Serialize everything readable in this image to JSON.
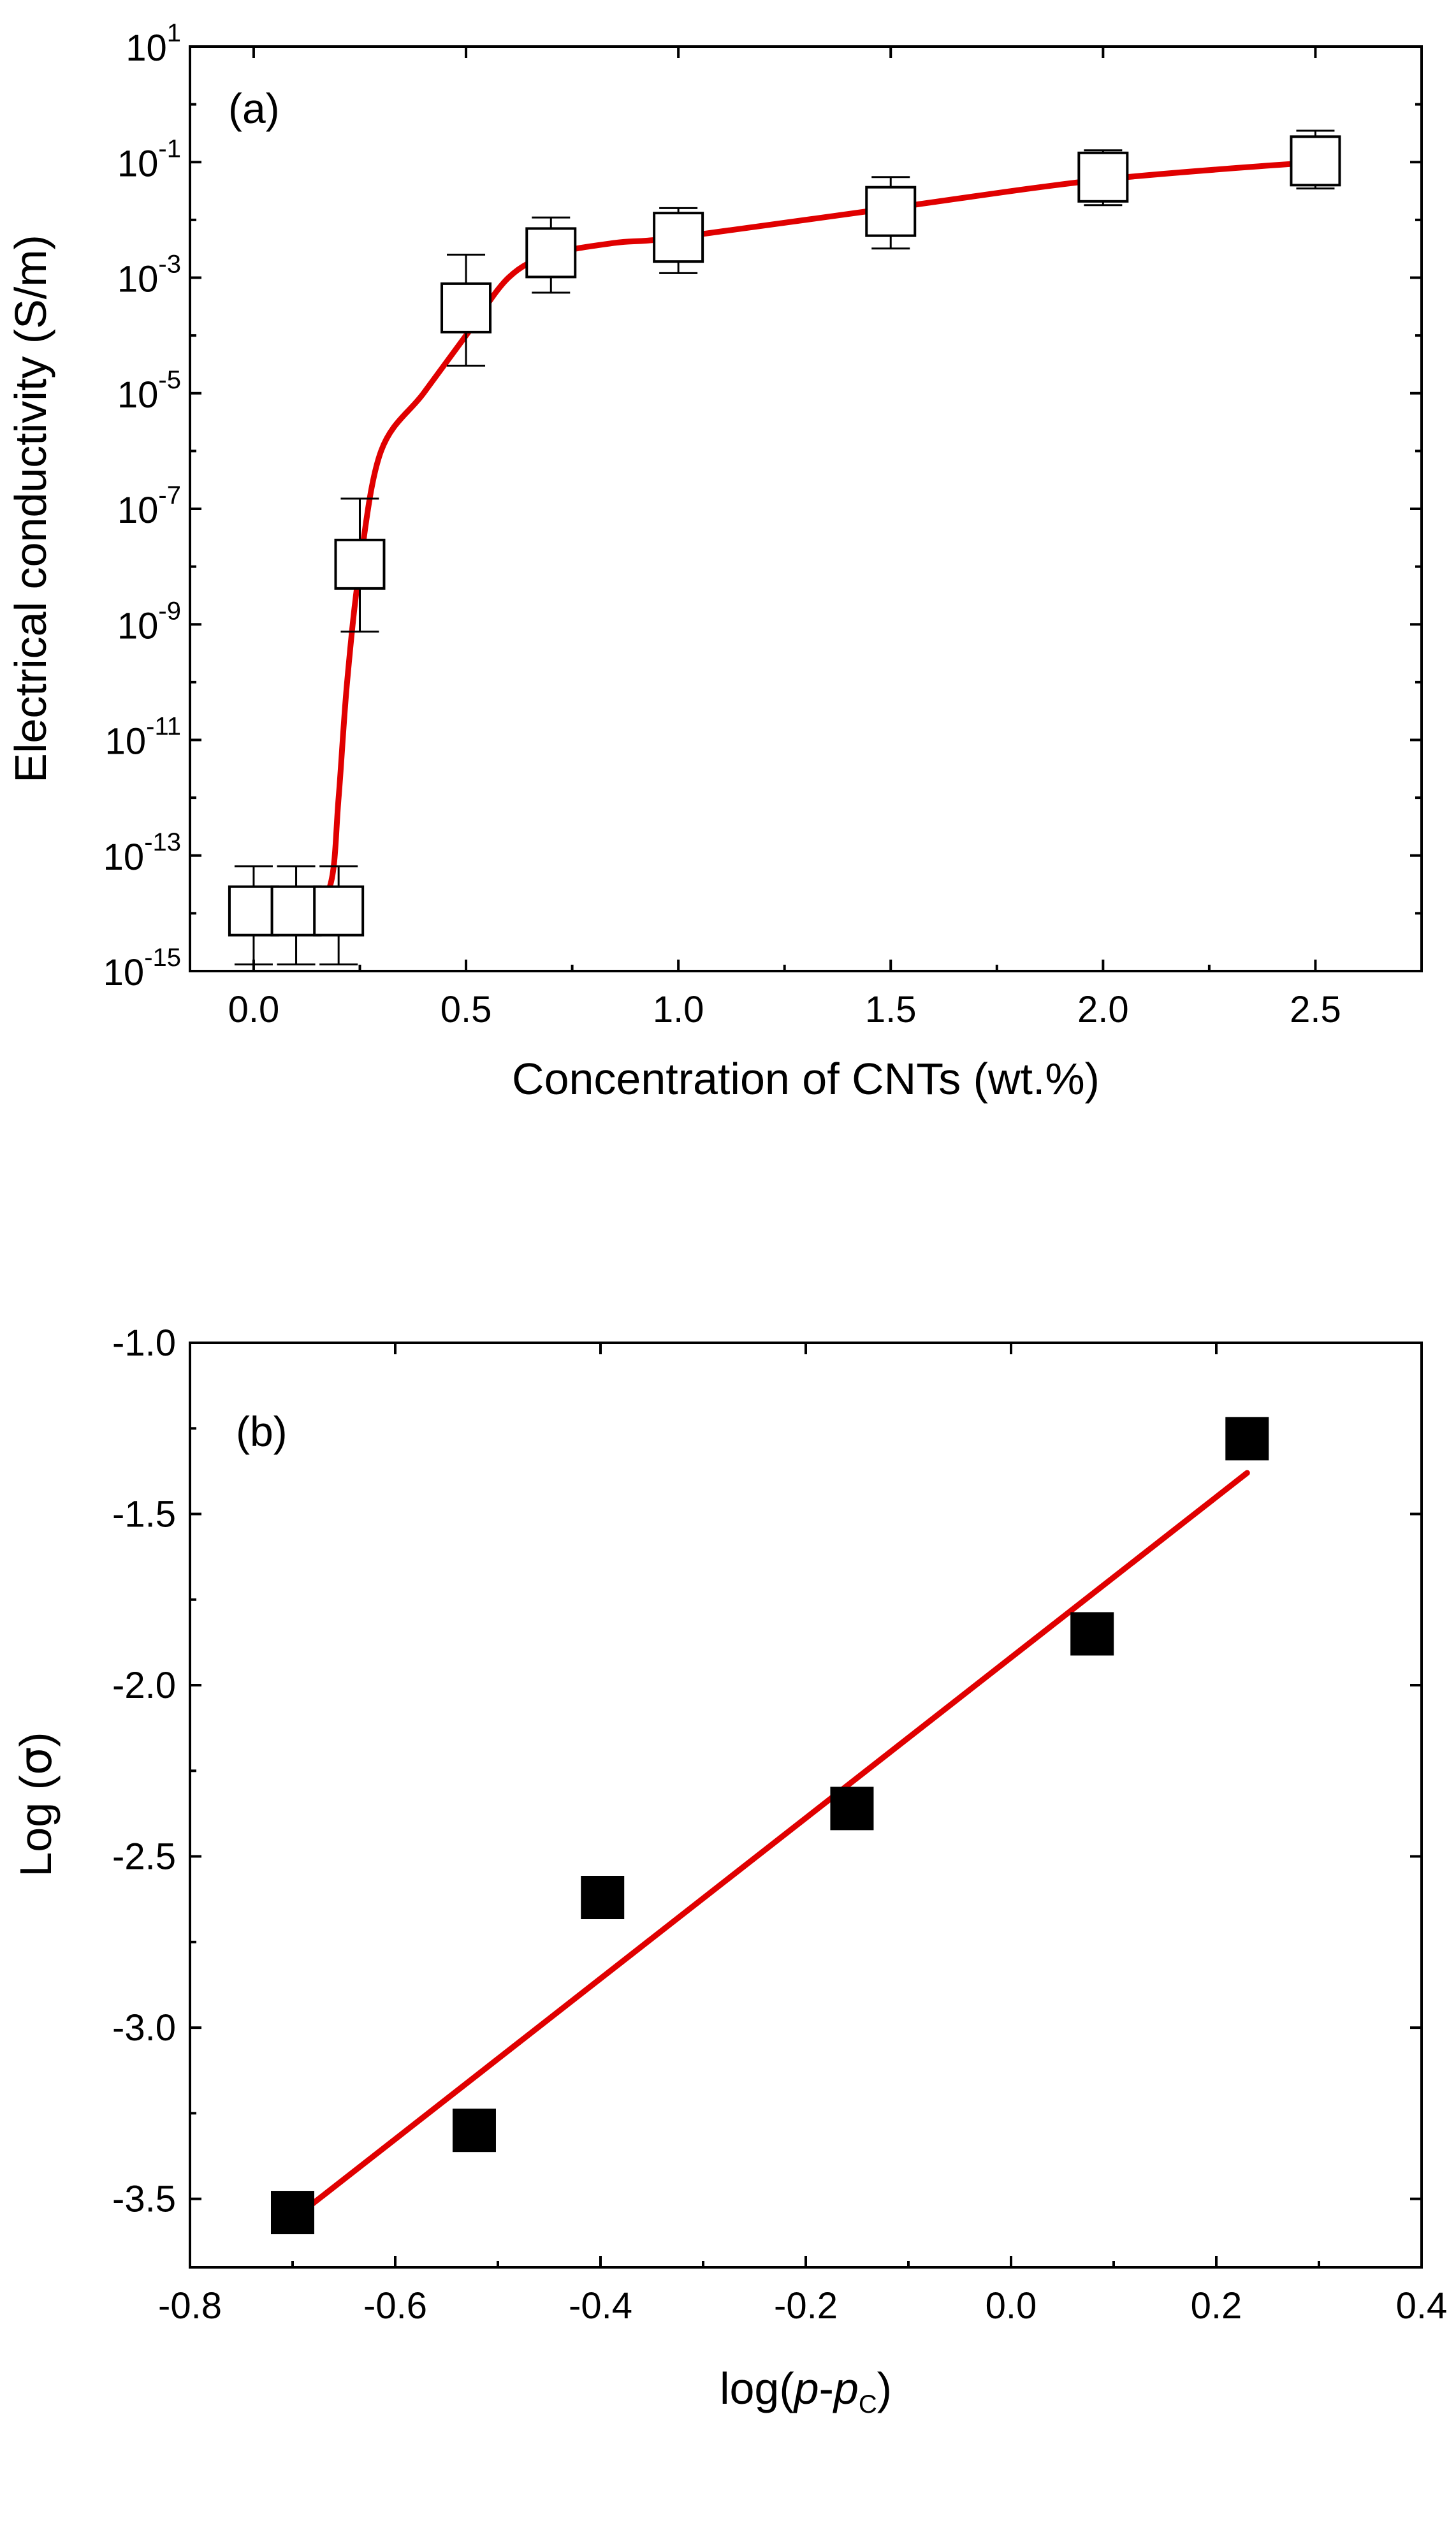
{
  "chart_data": [
    {
      "type": "scatter",
      "panel_label": "(a)",
      "title": "",
      "xlabel": "Concentration of CNTs (wt.%)",
      "ylabel": "Electrical conductivity (S/m)",
      "xlim": [
        -0.15,
        2.75
      ],
      "ylim_exponent": [
        -15,
        1
      ],
      "yscale": "log",
      "grid": false,
      "x_ticks": [
        "0.0",
        "0.5",
        "1.0",
        "1.5",
        "2.0",
        "2.5"
      ],
      "y_ticks": [
        {
          "base": "10",
          "exp": "1"
        },
        {
          "base": "10",
          "exp": "-1"
        },
        {
          "base": "10",
          "exp": "-3"
        },
        {
          "base": "10",
          "exp": "-5"
        },
        {
          "base": "10",
          "exp": "-7"
        },
        {
          "base": "10",
          "exp": "-9"
        },
        {
          "base": "10",
          "exp": "-11"
        },
        {
          "base": "10",
          "exp": "-13"
        },
        {
          "base": "10",
          "exp": "-15"
        }
      ],
      "marker": "open-square",
      "points": [
        {
          "x": 0.0,
          "y": 1.1e-14,
          "err_low": 1.3e-15,
          "err_high": 6.5e-14
        },
        {
          "x": 0.1,
          "y": 1.1e-14,
          "err_low": 1.3e-15,
          "err_high": 6.5e-14
        },
        {
          "x": 0.2,
          "y": 1.1e-14,
          "err_low": 1.3e-15,
          "err_high": 6.5e-14
        },
        {
          "x": 0.25,
          "y": 1.1e-08,
          "err_low": 7.5e-10,
          "err_high": 1.5e-07
        },
        {
          "x": 0.5,
          "y": 0.0003,
          "err_low": 3e-05,
          "err_high": 0.0025
        },
        {
          "x": 0.7,
          "y": 0.0027,
          "err_low": 0.00055,
          "err_high": 0.011
        },
        {
          "x": 1.0,
          "y": 0.005,
          "err_low": 0.0012,
          "err_high": 0.016
        },
        {
          "x": 1.5,
          "y": 0.014,
          "err_low": 0.0032,
          "err_high": 0.055
        },
        {
          "x": 2.0,
          "y": 0.055,
          "err_low": 0.018,
          "err_high": 0.16
        },
        {
          "x": 2.5,
          "y": 0.105,
          "err_low": 0.035,
          "err_high": 0.35
        }
      ],
      "fit_curve": [
        {
          "x": 0.0,
          "y": 1e-14
        },
        {
          "x": 0.12,
          "y": 1e-14
        },
        {
          "x": 0.18,
          "y": 3e-14
        },
        {
          "x": 0.2,
          "y": 1e-12
        },
        {
          "x": 0.22,
          "y": 1e-10
        },
        {
          "x": 0.25,
          "y": 1e-08
        },
        {
          "x": 0.3,
          "y": 1e-06
        },
        {
          "x": 0.4,
          "y": 1e-05
        },
        {
          "x": 0.5,
          "y": 0.0001
        },
        {
          "x": 0.6,
          "y": 0.001
        },
        {
          "x": 0.7,
          "y": 0.0025
        },
        {
          "x": 0.85,
          "y": 0.004
        },
        {
          "x": 1.0,
          "y": 0.005
        },
        {
          "x": 1.5,
          "y": 0.016
        },
        {
          "x": 2.0,
          "y": 0.05
        },
        {
          "x": 2.5,
          "y": 0.1
        }
      ]
    },
    {
      "type": "scatter",
      "panel_label": "(b)",
      "title": "",
      "xlabel_parts": {
        "prefix": "log(",
        "p1": "p",
        "dash": "-",
        "p2": "p",
        "sub": "C",
        "suffix": ")"
      },
      "ylabel_parts": {
        "prefix": "Log (",
        "symbol": "σ",
        "suffix": ")"
      },
      "xlim": [
        -0.8,
        0.4
      ],
      "ylim": [
        -3.7,
        -1.0
      ],
      "grid": false,
      "x_ticks": [
        "-0.8",
        "-0.6",
        "-0.4",
        "-0.2",
        "0.0",
        "0.2",
        "0.4"
      ],
      "y_ticks": [
        "-1.0",
        "-1.5",
        "-2.0",
        "-2.5",
        "-3.0",
        "-3.5"
      ],
      "marker": "filled-square",
      "points": [
        {
          "x": -0.7,
          "y": -3.54
        },
        {
          "x": -0.523,
          "y": -3.3
        },
        {
          "x": -0.398,
          "y": -2.62
        },
        {
          "x": -0.155,
          "y": -2.36
        },
        {
          "x": 0.079,
          "y": -1.85
        },
        {
          "x": 0.23,
          "y": -1.28
        }
      ],
      "fit_line": [
        {
          "x": -0.7,
          "y": -3.56
        },
        {
          "x": 0.23,
          "y": -1.38
        }
      ]
    }
  ]
}
